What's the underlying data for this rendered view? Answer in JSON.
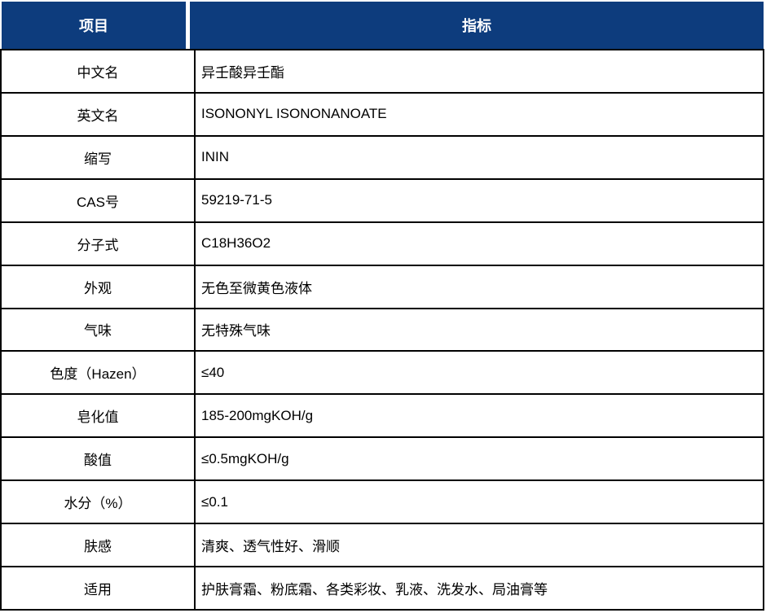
{
  "table": {
    "colors": {
      "header_bg": "#0d3c7d",
      "header_text": "#ffffff",
      "border": "#000000",
      "body_text": "#000000",
      "row_bg": "#ffffff"
    },
    "headers": {
      "item": "项目",
      "spec": "指标"
    },
    "rows": [
      {
        "item": "中文名",
        "spec": "异壬酸异壬酯"
      },
      {
        "item": "英文名",
        "spec": "ISONONYL ISONONANOATE"
      },
      {
        "item": "缩写",
        "spec": "ININ"
      },
      {
        "item": "CAS号",
        "spec": "59219-71-5"
      },
      {
        "item": "分子式",
        "spec": "C18H36O2"
      },
      {
        "item": "外观",
        "spec": "无色至微黄色液体"
      },
      {
        "item": "气味",
        "spec": "无特殊气味"
      },
      {
        "item": "色度（Hazen）",
        "spec": "≤40"
      },
      {
        "item": "皂化值",
        "spec": "185-200mgKOH/g"
      },
      {
        "item": "酸值",
        "spec": "≤0.5mgKOH/g"
      },
      {
        "item": "水分（%）",
        "spec": "≤0.1"
      },
      {
        "item": "肤感",
        "spec": "清爽、透气性好、滑顺"
      },
      {
        "item": "适用",
        "spec": "护肤膏霜、粉底霜、各类彩妆、乳液、洗发水、局油膏等"
      }
    ]
  }
}
